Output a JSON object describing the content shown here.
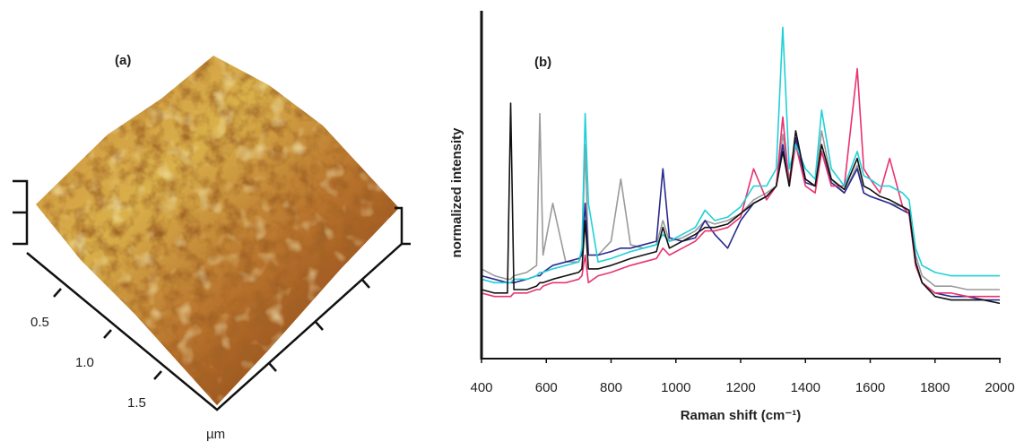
{
  "image_panel": {
    "label": "(a)",
    "axis_ticks": [
      "0.5",
      "1.0",
      "1.5"
    ],
    "unit": "µm"
  },
  "chart_data": {
    "type": "line",
    "label": "(b)",
    "x_label": "Raman shift (cm⁻¹)",
    "y_label": "normalized intensity",
    "x": [
      400,
      440,
      480,
      490,
      500,
      540,
      570,
      580,
      590,
      620,
      660,
      700,
      710,
      720,
      730,
      760,
      800,
      830,
      860,
      900,
      940,
      960,
      980,
      1020,
      1060,
      1090,
      1120,
      1160,
      1200,
      1240,
      1280,
      1310,
      1330,
      1350,
      1370,
      1400,
      1430,
      1450,
      1480,
      1520,
      1560,
      1580,
      1600,
      1630,
      1660,
      1700,
      1720,
      1740,
      1760,
      1800,
      1850,
      1900,
      1950,
      2000
    ],
    "series": [
      {
        "color": "#9a9a9a",
        "values": [
          0.26,
          0.24,
          0.23,
          0.23,
          0.24,
          0.25,
          0.27,
          0.71,
          0.3,
          0.45,
          0.28,
          0.28,
          0.3,
          0.62,
          0.3,
          0.3,
          0.34,
          0.52,
          0.33,
          0.32,
          0.33,
          0.4,
          0.34,
          0.35,
          0.37,
          0.4,
          0.39,
          0.4,
          0.42,
          0.46,
          0.48,
          0.5,
          0.65,
          0.52,
          0.63,
          0.52,
          0.5,
          0.66,
          0.52,
          0.48,
          0.56,
          0.48,
          0.47,
          0.46,
          0.45,
          0.44,
          0.42,
          0.3,
          0.24,
          0.21,
          0.21,
          0.2,
          0.2,
          0.2
        ]
      },
      {
        "color": "#2a2a90",
        "values": [
          0.24,
          0.23,
          0.22,
          0.22,
          0.22,
          0.23,
          0.24,
          0.24,
          0.25,
          0.27,
          0.28,
          0.29,
          0.3,
          0.45,
          0.3,
          0.3,
          0.31,
          0.32,
          0.32,
          0.33,
          0.34,
          0.55,
          0.35,
          0.34,
          0.35,
          0.4,
          0.36,
          0.32,
          0.4,
          0.45,
          0.47,
          0.5,
          0.62,
          0.5,
          0.64,
          0.51,
          0.5,
          0.6,
          0.51,
          0.48,
          0.55,
          0.48,
          0.47,
          0.46,
          0.45,
          0.43,
          0.42,
          0.28,
          0.22,
          0.19,
          0.18,
          0.18,
          0.17,
          0.17
        ]
      },
      {
        "color": "#e8336f",
        "values": [
          0.19,
          0.18,
          0.18,
          0.18,
          0.19,
          0.19,
          0.2,
          0.2,
          0.21,
          0.22,
          0.22,
          0.23,
          0.24,
          0.3,
          0.22,
          0.24,
          0.25,
          0.26,
          0.27,
          0.28,
          0.29,
          0.32,
          0.3,
          0.32,
          0.34,
          0.37,
          0.37,
          0.38,
          0.41,
          0.55,
          0.46,
          0.5,
          0.7,
          0.5,
          0.62,
          0.5,
          0.48,
          0.6,
          0.5,
          0.5,
          0.84,
          0.55,
          0.52,
          0.48,
          0.58,
          0.44,
          0.42,
          0.27,
          0.22,
          0.19,
          0.19,
          0.18,
          0.18,
          0.18
        ]
      },
      {
        "color": "#20d0d8",
        "values": [
          0.23,
          0.22,
          0.22,
          0.22,
          0.23,
          0.23,
          0.24,
          0.25,
          0.25,
          0.26,
          0.27,
          0.28,
          0.32,
          0.71,
          0.45,
          0.28,
          0.29,
          0.3,
          0.31,
          0.32,
          0.33,
          0.36,
          0.34,
          0.36,
          0.38,
          0.43,
          0.4,
          0.41,
          0.44,
          0.5,
          0.5,
          0.55,
          0.96,
          0.55,
          0.62,
          0.55,
          0.52,
          0.72,
          0.55,
          0.5,
          0.6,
          0.53,
          0.52,
          0.5,
          0.5,
          0.48,
          0.46,
          0.32,
          0.27,
          0.25,
          0.24,
          0.24,
          0.24,
          0.24
        ]
      },
      {
        "color": "#111111",
        "values": [
          0.2,
          0.19,
          0.19,
          0.74,
          0.2,
          0.2,
          0.21,
          0.22,
          0.22,
          0.23,
          0.24,
          0.25,
          0.26,
          0.4,
          0.26,
          0.26,
          0.27,
          0.28,
          0.29,
          0.3,
          0.31,
          0.38,
          0.32,
          0.34,
          0.36,
          0.38,
          0.38,
          0.39,
          0.42,
          0.45,
          0.47,
          0.5,
          0.6,
          0.5,
          0.66,
          0.52,
          0.5,
          0.62,
          0.52,
          0.49,
          0.58,
          0.5,
          0.49,
          0.47,
          0.46,
          0.44,
          0.43,
          0.28,
          0.22,
          0.18,
          0.17,
          0.17,
          0.17,
          0.16
        ]
      }
    ],
    "xlim": [
      400,
      2000
    ],
    "xticks": [
      400,
      600,
      800,
      1000,
      1200,
      1400,
      1600,
      1800,
      2000
    ],
    "ylim": [
      0,
      1
    ],
    "grid": false
  }
}
